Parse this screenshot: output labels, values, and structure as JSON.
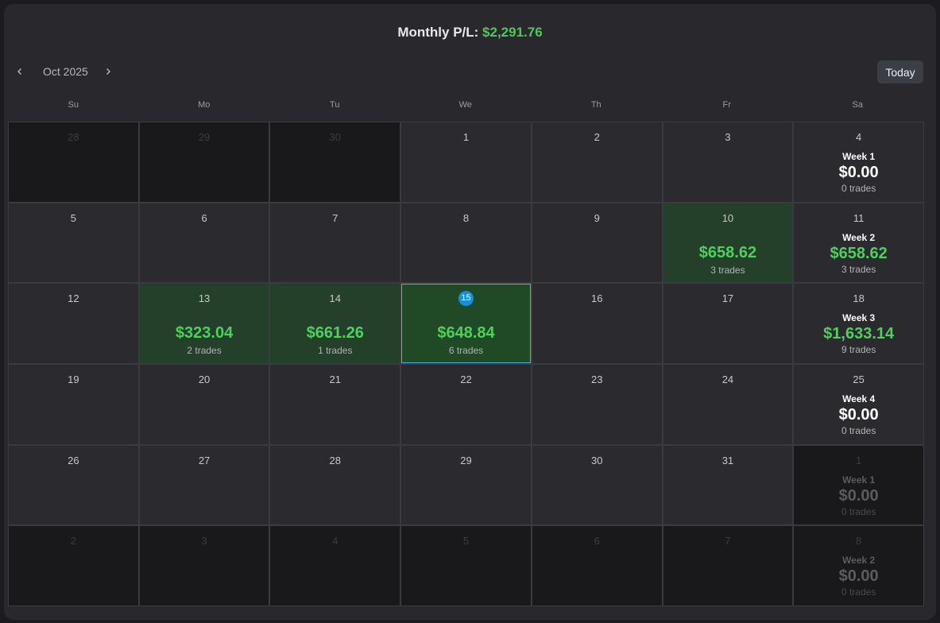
{
  "header": {
    "label": "Monthly P/L:",
    "amount": "$2,291.76"
  },
  "nav": {
    "month": "Oct 2025",
    "prev_icon": "chevron-left-icon",
    "next_icon": "chevron-right-icon"
  },
  "today_label": "Today",
  "weekdays": [
    "Su",
    "Mo",
    "Tu",
    "We",
    "Th",
    "Fr",
    "Sa"
  ],
  "colors": {
    "positive": "#4ed05c",
    "accent": "#1a8fd8",
    "green_day": "#24402a"
  },
  "weeks": [
    {
      "days": [
        {
          "day": "28",
          "other": true
        },
        {
          "day": "29",
          "other": true
        },
        {
          "day": "30",
          "other": true
        },
        {
          "day": "1"
        },
        {
          "day": "2"
        },
        {
          "day": "3"
        },
        {
          "day": "4",
          "week": {
            "label": "Week 1",
            "pl": "$0.00",
            "trades": "0 trades",
            "positive": false
          }
        }
      ]
    },
    {
      "days": [
        {
          "day": "5"
        },
        {
          "day": "6"
        },
        {
          "day": "7"
        },
        {
          "day": "8"
        },
        {
          "day": "9"
        },
        {
          "day": "10",
          "pl": "$658.62",
          "trades": "3 trades"
        },
        {
          "day": "11",
          "week": {
            "label": "Week 2",
            "pl": "$658.62",
            "trades": "3 trades",
            "positive": true
          }
        }
      ]
    },
    {
      "days": [
        {
          "day": "12"
        },
        {
          "day": "13",
          "pl": "$323.04",
          "trades": "2 trades"
        },
        {
          "day": "14",
          "pl": "$661.26",
          "trades": "1 trades"
        },
        {
          "day": "15",
          "pl": "$648.84",
          "trades": "6 trades",
          "today": true
        },
        {
          "day": "16"
        },
        {
          "day": "17"
        },
        {
          "day": "18",
          "week": {
            "label": "Week 3",
            "pl": "$1,633.14",
            "trades": "9 trades",
            "positive": true
          }
        }
      ]
    },
    {
      "days": [
        {
          "day": "19"
        },
        {
          "day": "20"
        },
        {
          "day": "21"
        },
        {
          "day": "22"
        },
        {
          "day": "23"
        },
        {
          "day": "24"
        },
        {
          "day": "25",
          "week": {
            "label": "Week 4",
            "pl": "$0.00",
            "trades": "0 trades",
            "positive": false
          }
        }
      ]
    },
    {
      "days": [
        {
          "day": "26"
        },
        {
          "day": "27"
        },
        {
          "day": "28"
        },
        {
          "day": "29"
        },
        {
          "day": "30"
        },
        {
          "day": "31"
        },
        {
          "day": "1",
          "other": true,
          "week": {
            "label": "Week 1",
            "pl": "$0.00",
            "trades": "0 trades",
            "positive": false
          }
        }
      ]
    },
    {
      "days": [
        {
          "day": "2",
          "other": true
        },
        {
          "day": "3",
          "other": true
        },
        {
          "day": "4",
          "other": true
        },
        {
          "day": "5",
          "other": true
        },
        {
          "day": "6",
          "other": true
        },
        {
          "day": "7",
          "other": true
        },
        {
          "day": "8",
          "other": true,
          "week": {
            "label": "Week 2",
            "pl": "$0.00",
            "trades": "0 trades",
            "positive": false
          }
        }
      ]
    }
  ]
}
